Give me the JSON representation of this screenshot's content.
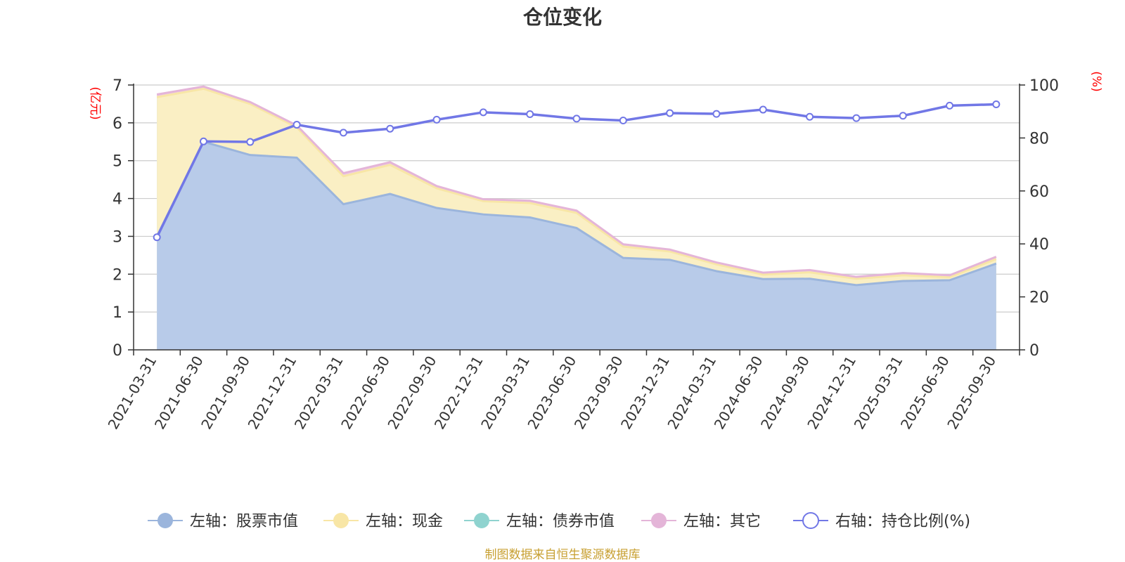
{
  "chart_data": {
    "type": "area+line",
    "title": "仓位变化",
    "left_axis": {
      "label": "(亿元)",
      "ticks": [
        0,
        1,
        2,
        3,
        4,
        5,
        6,
        7
      ],
      "range": [
        0,
        7
      ]
    },
    "right_axis": {
      "label": "(%)",
      "ticks": [
        0,
        20,
        40,
        60,
        80,
        100
      ],
      "range": [
        0,
        100
      ]
    },
    "categories": [
      "2021-03-31",
      "2021-06-30",
      "2021-09-30",
      "2021-12-31",
      "2022-03-31",
      "2022-06-30",
      "2022-09-30",
      "2022-12-31",
      "2023-03-31",
      "2023-06-30",
      "2023-09-30",
      "2023-12-31",
      "2024-03-31",
      "2024-06-30",
      "2024-09-30",
      "2024-12-31",
      "2025-03-31",
      "2025-06-30",
      "2025-09-30"
    ],
    "series": [
      {
        "name": "左轴：股票市值",
        "axis": "left",
        "kind": "stacked-area",
        "color": "#9bb5dc",
        "fill": "#b8cbe9",
        "values": [
          3.0,
          5.5,
          5.15,
          5.08,
          3.85,
          4.12,
          3.75,
          3.58,
          3.5,
          3.22,
          2.43,
          2.38,
          2.08,
          1.87,
          1.88,
          1.71,
          1.82,
          1.84,
          2.28
        ]
      },
      {
        "name": "左轴：现金",
        "axis": "left",
        "kind": "stacked-area",
        "color": "#f8e6a6",
        "fill": "#faefc4",
        "values": [
          3.68,
          1.4,
          1.35,
          0.8,
          0.74,
          0.77,
          0.52,
          0.35,
          0.38,
          0.4,
          0.3,
          0.22,
          0.18,
          0.12,
          0.17,
          0.17,
          0.15,
          0.08,
          0.12
        ]
      },
      {
        "name": "左轴：债券市值",
        "axis": "left",
        "kind": "stacked-area",
        "color": "#8fd3cf",
        "fill": "#b9e5e2",
        "values": [
          0,
          0,
          0,
          0,
          0,
          0,
          0,
          0,
          0,
          0,
          0,
          0,
          0,
          0,
          0,
          0,
          0,
          0,
          0
        ]
      },
      {
        "name": "左轴：其它",
        "axis": "left",
        "kind": "stacked-area",
        "color": "#e4b5d8",
        "fill": "#edcbe5",
        "values": [
          0.07,
          0.06,
          0.05,
          0.05,
          0.08,
          0.07,
          0.06,
          0.05,
          0.06,
          0.06,
          0.06,
          0.05,
          0.05,
          0.05,
          0.06,
          0.05,
          0.06,
          0.05,
          0.06
        ]
      },
      {
        "name": "右轴：持仓比例(%)",
        "axis": "right",
        "kind": "line",
        "color": "#7177e6",
        "values": [
          42.5,
          78.7,
          78.5,
          85.0,
          82.0,
          83.5,
          86.9,
          89.7,
          89.0,
          87.3,
          86.6,
          89.4,
          89.1,
          90.7,
          88.0,
          87.5,
          88.4,
          92.2,
          92.7
        ]
      }
    ],
    "legend_position": "bottom",
    "source_note": "制图数据来自恒生聚源数据库"
  }
}
